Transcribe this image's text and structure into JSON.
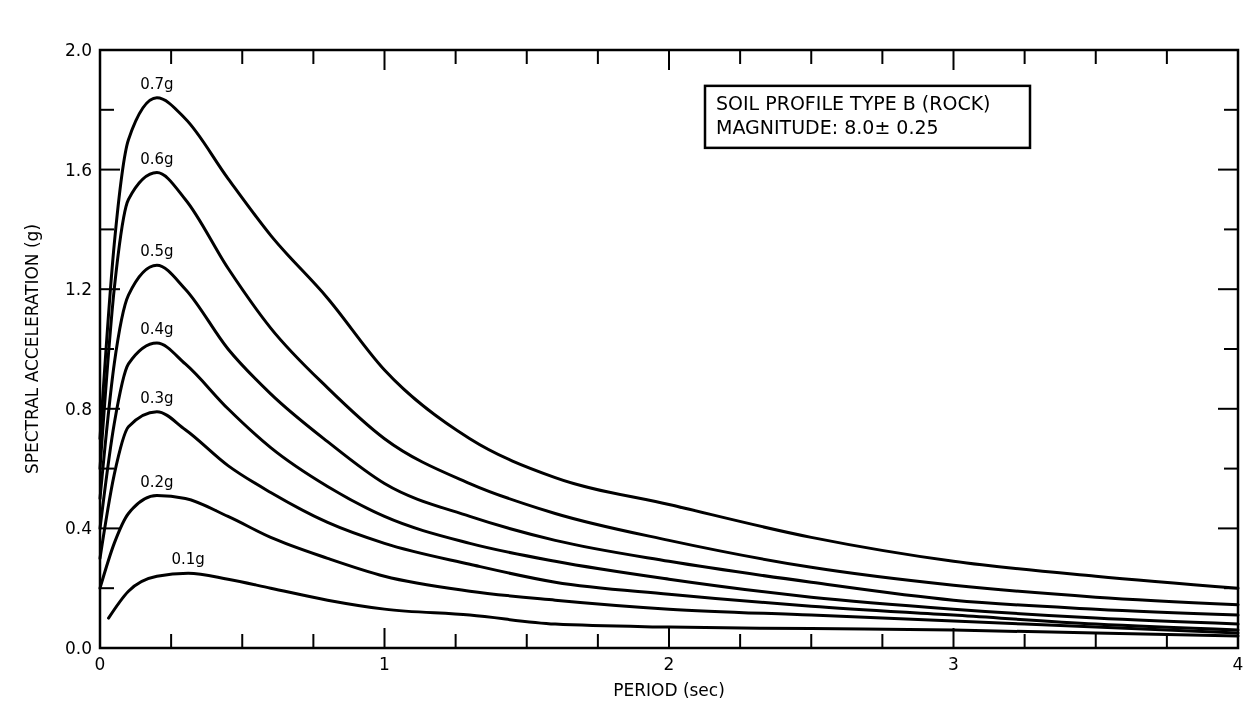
{
  "chart_data": {
    "type": "line",
    "xlabel": "PERIOD (sec)",
    "ylabel": "SPECTRAL ACCELERATION (g)",
    "annotations": [
      "SOIL PROFILE TYPE B (ROCK)",
      "MAGNITUDE: 8.0± 0.25"
    ],
    "xlim": [
      0,
      4
    ],
    "ylim": [
      0,
      2
    ],
    "xticks": [
      0,
      {
        "value": 0.25,
        "label": null
      },
      {
        "value": 0.5,
        "label": null
      },
      {
        "value": 0.75,
        "label": null
      },
      1,
      {
        "value": 1.25,
        "label": null
      },
      {
        "value": 1.5,
        "label": null
      },
      {
        "value": 1.75,
        "label": null
      },
      2,
      {
        "value": 2.25,
        "label": null
      },
      {
        "value": 2.5,
        "label": null
      },
      {
        "value": 2.75,
        "label": null
      },
      3,
      {
        "value": 3.25,
        "label": null
      },
      {
        "value": 3.5,
        "label": null
      },
      {
        "value": 3.75,
        "label": null
      },
      4
    ],
    "yticks": [
      {
        "value": 0,
        "label": "0.0"
      },
      {
        "value": 0.2,
        "label": null
      },
      0.4,
      {
        "value": 0.6,
        "label": null
      },
      0.8,
      {
        "value": 1.0,
        "label": null
      },
      1.2,
      {
        "value": 1.4,
        "label": null
      },
      1.6,
      {
        "value": 1.8,
        "label": null
      },
      {
        "value": 2,
        "label": "2.0"
      }
    ],
    "grid": false,
    "marker": "none",
    "line_style": "solid",
    "series": [
      {
        "name": "0.7g",
        "color": "#000000",
        "x": [
          0,
          0.05,
          0.1,
          0.2,
          0.3,
          0.45,
          0.6,
          0.8,
          1,
          1.3,
          1.6,
          2,
          2.5,
          3,
          3.5,
          4
        ],
        "values": [
          0.7,
          1.35,
          1.7,
          1.84,
          1.77,
          1.57,
          1.38,
          1.17,
          0.93,
          0.7,
          0.57,
          0.48,
          0.37,
          0.29,
          0.24,
          0.2
        ]
      },
      {
        "name": "0.6g",
        "color": "#000000",
        "x": [
          0,
          0.05,
          0.1,
          0.2,
          0.3,
          0.45,
          0.6,
          0.8,
          1,
          1.3,
          1.6,
          2,
          2.5,
          3,
          3.5,
          4
        ],
        "values": [
          0.6,
          1.2,
          1.5,
          1.59,
          1.5,
          1.27,
          1.07,
          0.87,
          0.7,
          0.55,
          0.45,
          0.36,
          0.27,
          0.21,
          0.17,
          0.145
        ]
      },
      {
        "name": "0.5g",
        "color": "#000000",
        "x": [
          0,
          0.05,
          0.1,
          0.2,
          0.3,
          0.45,
          0.6,
          0.8,
          1,
          1.3,
          1.6,
          2,
          2.5,
          3,
          3.5,
          4
        ],
        "values": [
          0.5,
          0.95,
          1.18,
          1.28,
          1.2,
          1.0,
          0.85,
          0.69,
          0.55,
          0.44,
          0.36,
          0.29,
          0.22,
          0.16,
          0.13,
          0.11
        ]
      },
      {
        "name": "0.4g",
        "color": "#000000",
        "x": [
          0,
          0.05,
          0.1,
          0.2,
          0.3,
          0.45,
          0.6,
          0.8,
          1,
          1.3,
          1.6,
          2,
          2.5,
          3,
          3.5,
          4
        ],
        "values": [
          0.4,
          0.75,
          0.95,
          1.02,
          0.95,
          0.8,
          0.67,
          0.54,
          0.44,
          0.35,
          0.29,
          0.23,
          0.17,
          0.13,
          0.1,
          0.08
        ]
      },
      {
        "name": "0.3g",
        "color": "#000000",
        "x": [
          0,
          0.05,
          0.1,
          0.2,
          0.3,
          0.45,
          0.6,
          0.8,
          1,
          1.3,
          1.6,
          2,
          2.5,
          3,
          3.5,
          4
        ],
        "values": [
          0.3,
          0.58,
          0.74,
          0.79,
          0.73,
          0.61,
          0.52,
          0.42,
          0.35,
          0.28,
          0.22,
          0.18,
          0.14,
          0.11,
          0.08,
          0.06
        ]
      },
      {
        "name": "0.2g",
        "color": "#000000",
        "x": [
          0,
          0.05,
          0.1,
          0.2,
          0.3,
          0.45,
          0.6,
          0.8,
          1,
          1.3,
          1.6,
          2,
          2.5,
          3,
          3.5,
          4
        ],
        "values": [
          0.2,
          0.35,
          0.45,
          0.51,
          0.5,
          0.44,
          0.37,
          0.3,
          0.24,
          0.19,
          0.16,
          0.13,
          0.11,
          0.09,
          0.07,
          0.05
        ]
      },
      {
        "name": "0.1g",
        "color": "#000000",
        "x": [
          0.03,
          0.1,
          0.2,
          0.31,
          0.45,
          0.6,
          0.8,
          1,
          1.3,
          1.6,
          2,
          2.5,
          3,
          3.5,
          4
        ],
        "values": [
          0.1,
          0.19,
          0.24,
          0.25,
          0.23,
          0.2,
          0.16,
          0.13,
          0.11,
          0.08,
          0.07,
          0.065,
          0.06,
          0.05,
          0.04
        ]
      }
    ]
  }
}
